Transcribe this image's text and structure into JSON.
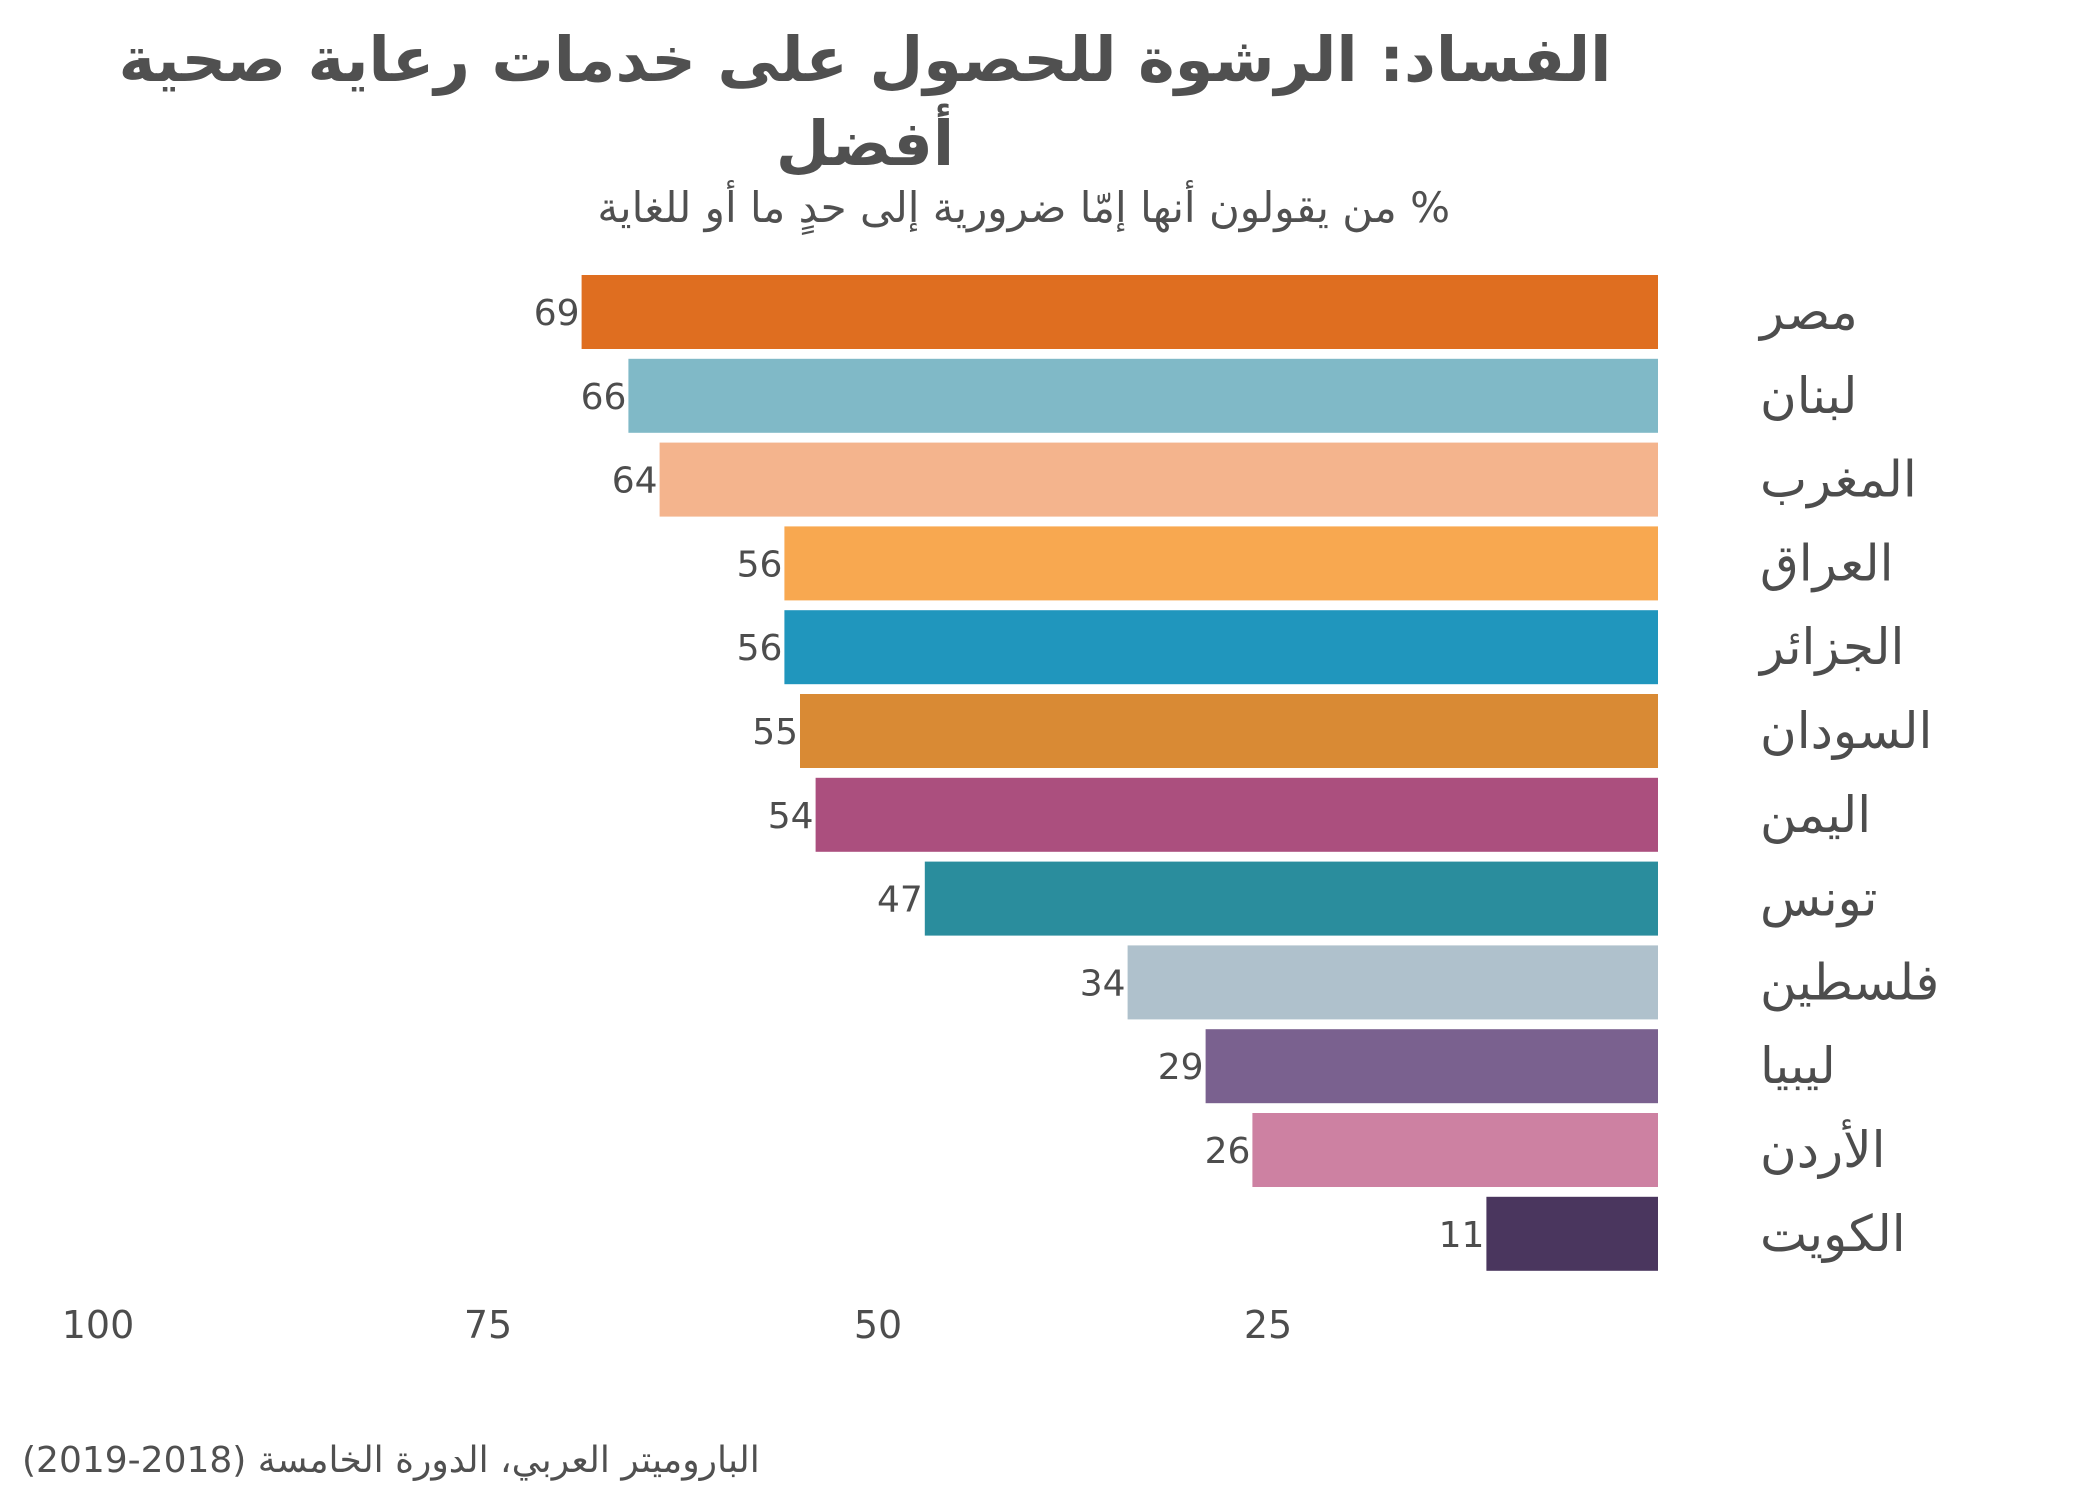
{
  "title": "الفساد: الرشوة للحصول على خدمات رعاية صحية أفضل",
  "subtitle": "% من يقولون أنها إمّا ضرورية إلى حدٍ ما أو للغاية",
  "source": "الباروميتر العربي، الدورة الخامسة (2018-2019)",
  "chart_data": {
    "type": "bar",
    "orientation": "horizontal",
    "direction": "right-to-left",
    "categories": [
      "مصر",
      "لبنان",
      "المغرب",
      "العراق",
      "الجزائر",
      "السودان",
      "اليمن",
      "تونس",
      "فلسطين",
      "ليبيا",
      "الأردن",
      "الكويت"
    ],
    "values": [
      69,
      66,
      64,
      56,
      56,
      55,
      54,
      47,
      34,
      29,
      26,
      11
    ],
    "colors": [
      "#df6e20",
      "#80b9c7",
      "#f4b48d",
      "#f8a850",
      "#2096bd",
      "#d98a34",
      "#ab4f7e",
      "#2a8d9d",
      "#afc1cc",
      "#7a618f",
      "#cd81a2",
      "#4a365e"
    ],
    "x_ticks": [
      100,
      75,
      50,
      25
    ],
    "xlim": [
      0,
      100
    ],
    "grid": false,
    "legend": false
  }
}
